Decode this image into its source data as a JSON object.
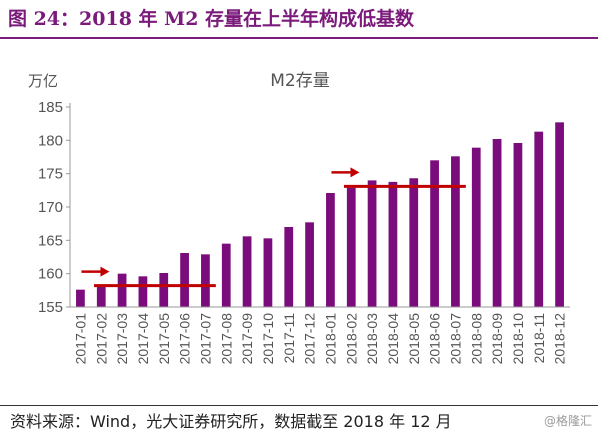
{
  "figure": {
    "title": "图 24：2018 年 M2 存量在上半年构成低基数",
    "source": "资料来源：Wind，光大证券研究所，数据截至 2018 年 12 月",
    "watermark": "@格隆汇"
  },
  "colors": {
    "bar": "#7b0c7b",
    "annotation": "#c00000",
    "title": "#7a1a7a"
  },
  "chart_data": {
    "type": "bar",
    "title": "M2存量",
    "ylabel": "万亿",
    "xlabel": "",
    "ylim": [
      155,
      185
    ],
    "yticks": [
      155,
      160,
      165,
      170,
      175,
      180,
      185
    ],
    "grid": false,
    "categories": [
      "2017-01",
      "2017-02",
      "2017-03",
      "2017-04",
      "2017-05",
      "2017-06",
      "2017-07",
      "2017-08",
      "2017-09",
      "2017-10",
      "2017-11",
      "2017-12",
      "2018-01",
      "2018-02",
      "2018-03",
      "2018-04",
      "2018-05",
      "2018-06",
      "2018-07",
      "2018-08",
      "2018-09",
      "2018-10",
      "2018-11",
      "2018-12"
    ],
    "values": [
      157.6,
      158.3,
      160.0,
      159.6,
      160.1,
      163.1,
      162.9,
      164.5,
      165.6,
      165.3,
      167.0,
      167.7,
      172.1,
      172.9,
      173.99,
      173.77,
      174.31,
      177.0,
      177.6,
      178.9,
      180.2,
      179.6,
      181.3,
      182.7
    ],
    "annotations": [
      {
        "type": "arrow-line",
        "from": "2017-02",
        "to": "2017-07",
        "y": 158.2,
        "color": "#c00000"
      },
      {
        "type": "arrow-line",
        "from": "2018-02",
        "to": "2018-07",
        "y": 173.1,
        "color": "#c00000"
      }
    ]
  }
}
